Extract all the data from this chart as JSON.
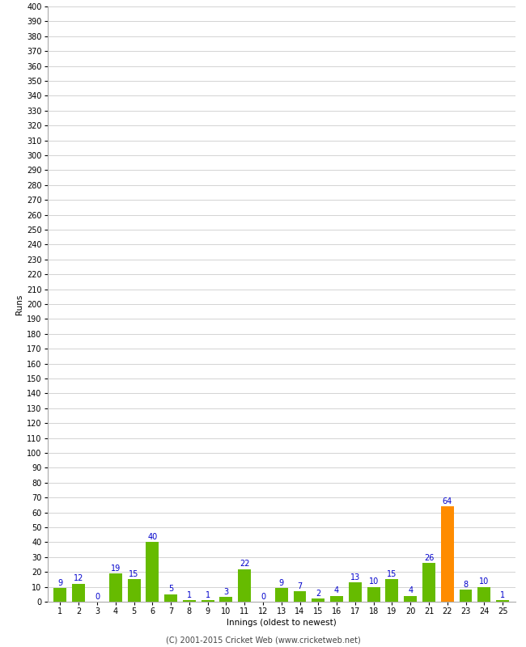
{
  "xlabel": "Innings (oldest to newest)",
  "ylabel": "Runs",
  "innings": [
    1,
    2,
    3,
    4,
    5,
    6,
    7,
    8,
    9,
    10,
    11,
    12,
    13,
    14,
    15,
    16,
    17,
    18,
    19,
    20,
    21,
    22,
    23,
    24,
    25
  ],
  "values": [
    9,
    12,
    0,
    19,
    15,
    40,
    5,
    1,
    1,
    3,
    22,
    0,
    9,
    7,
    2,
    4,
    13,
    10,
    15,
    4,
    26,
    64,
    8,
    10,
    1
  ],
  "bar_colors": [
    "#66bb00",
    "#66bb00",
    "#66bb00",
    "#66bb00",
    "#66bb00",
    "#66bb00",
    "#66bb00",
    "#66bb00",
    "#66bb00",
    "#66bb00",
    "#66bb00",
    "#66bb00",
    "#66bb00",
    "#66bb00",
    "#66bb00",
    "#66bb00",
    "#66bb00",
    "#66bb00",
    "#66bb00",
    "#66bb00",
    "#66bb00",
    "#ff8c00",
    "#66bb00",
    "#66bb00",
    "#66bb00"
  ],
  "label_color": "#0000cc",
  "ylim": [
    0,
    400
  ],
  "ytick_step": 10,
  "ytick_max": 400,
  "grid_color": "#cccccc",
  "bg_color": "#ffffff",
  "footer": "(C) 2001-2015 Cricket Web (www.cricketweb.net)",
  "tick_fontsize": 7,
  "label_fontsize": 7.5,
  "footer_fontsize": 7,
  "bar_width": 0.7
}
